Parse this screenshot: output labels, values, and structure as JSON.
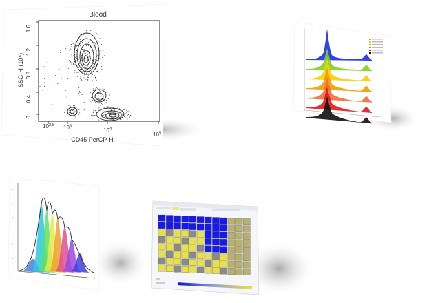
{
  "contour_plot": {
    "title": "Blood",
    "ylabel": "SSC-H (10⁶)",
    "xlabel": "CD45 PerCP-H",
    "y_ticks": [
      "1.6",
      "1.2",
      "0.8",
      "0.4",
      "0"
    ],
    "x_ticks": [
      {
        "base": "10",
        "exp": "2.5"
      },
      {
        "base": "10",
        "exp": "3"
      },
      {
        "base": "10",
        "exp": "4"
      },
      {
        "base": "10",
        "exp": "5"
      }
    ]
  },
  "histogram_overlay": {
    "legend": [
      "",
      "",
      "",
      "",
      "",
      ""
    ],
    "colors": [
      "#1a2ee6",
      "#7ed321",
      "#f5d000",
      "#f59a00",
      "#f26b3a",
      "#e01818",
      "#111111"
    ]
  },
  "cell_cycle_histogram": {
    "colors": [
      "#4a7fe0",
      "#2ac8e0",
      "#5fe05f",
      "#e8e84a",
      "#f0a030",
      "#e05090",
      "#9a4ae0",
      "#4040e0"
    ]
  },
  "plate_window": {
    "colors": {
      "selected": "#1a1ae6",
      "yellow": "#e8e04a",
      "gray": "#8a8a8a",
      "olive": "#b8b070"
    }
  }
}
